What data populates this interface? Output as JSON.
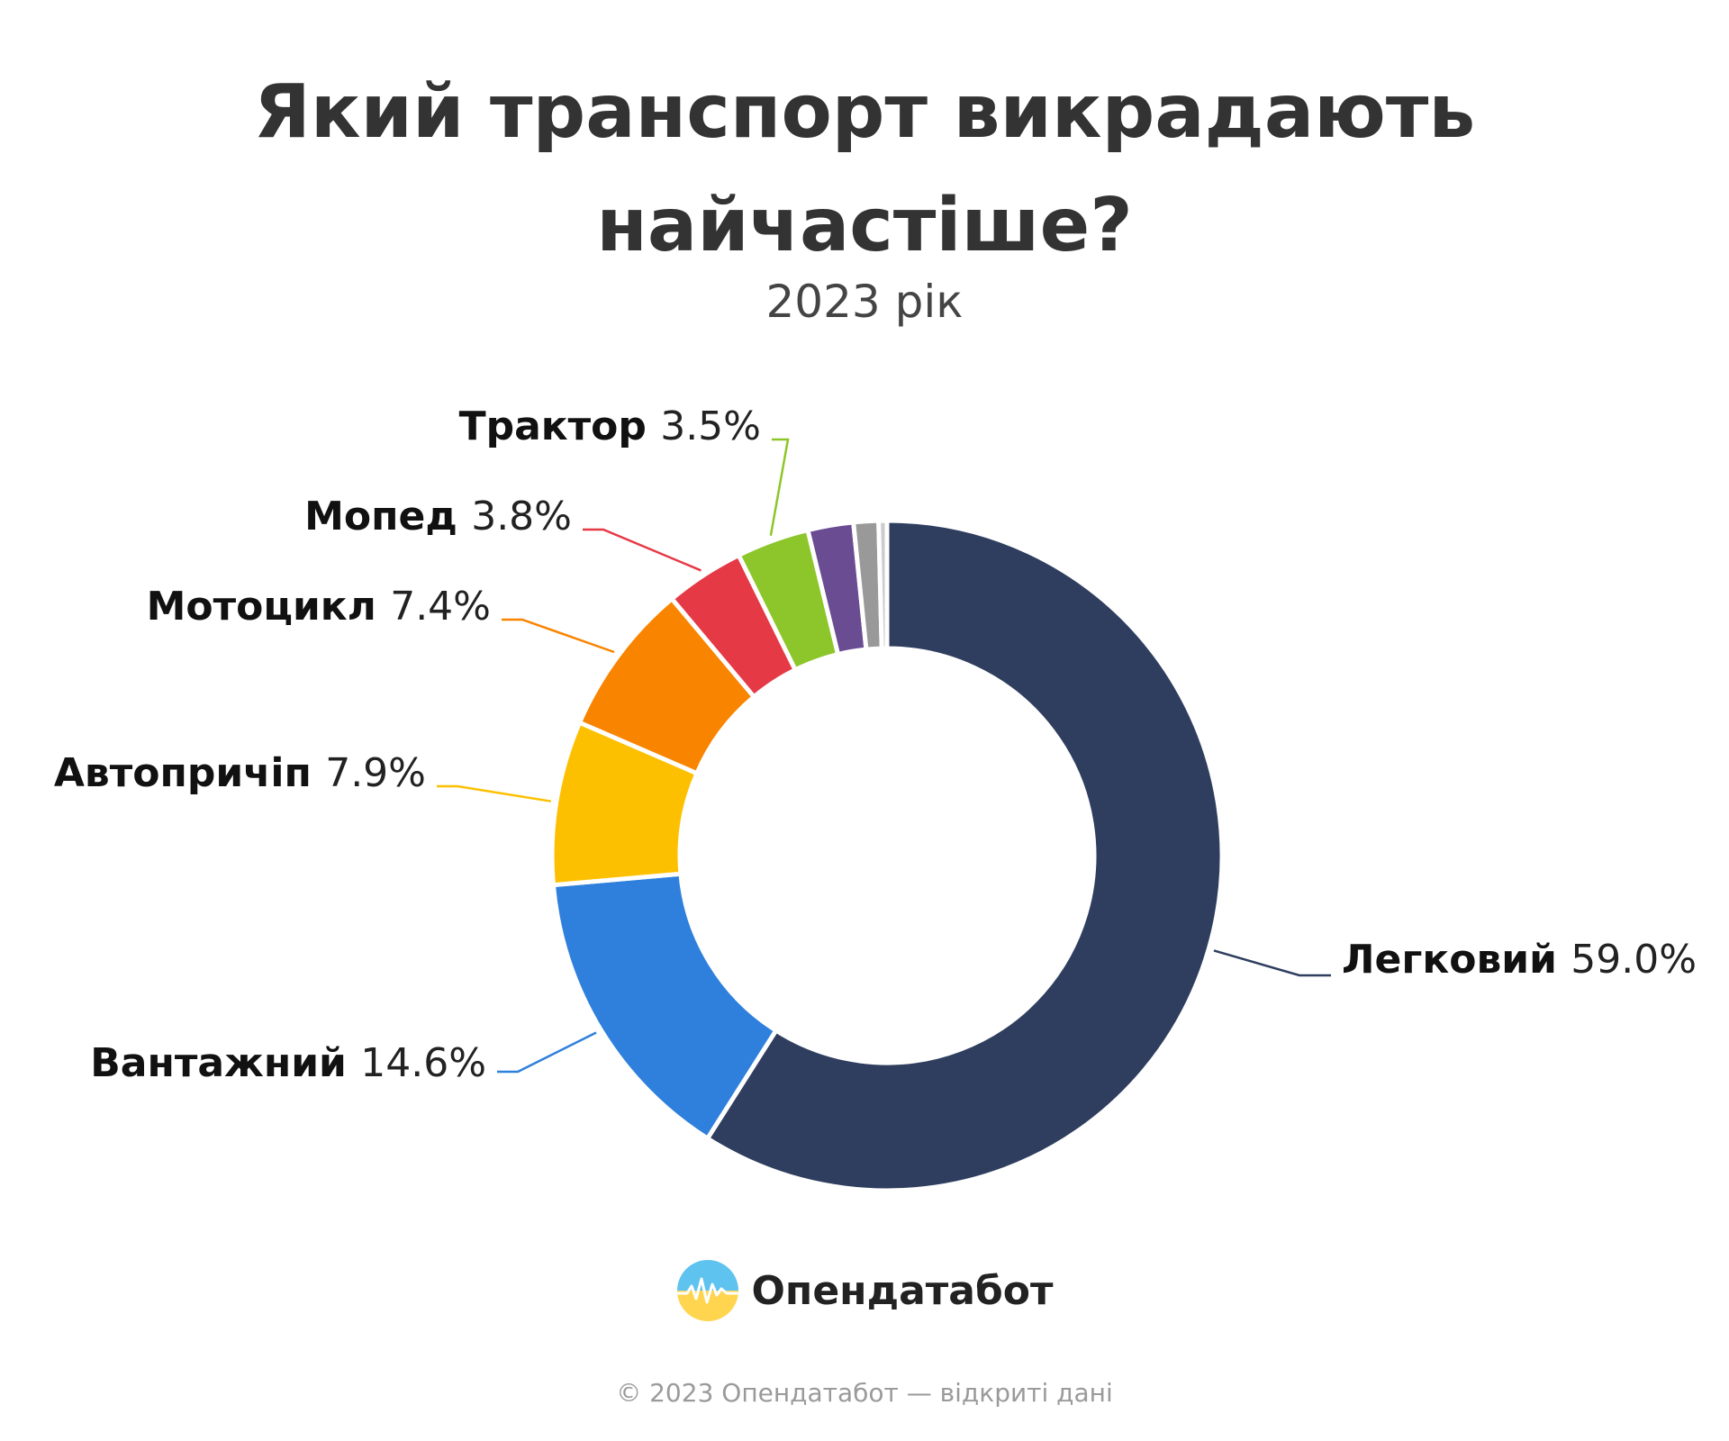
{
  "page": {
    "title_line1": "Який транспорт викрадають",
    "title_line2": "найчастіше?",
    "subtitle": "2023 рік"
  },
  "chart_data": {
    "type": "pie",
    "variant": "donut",
    "title": "Який транспорт викрадають найчастіше?",
    "subtitle": "2023 рік",
    "unit": "%",
    "start_angle_deg": 0,
    "slices": [
      {
        "label": "Легковий",
        "value": 59.0,
        "display": "59.0%",
        "color": "#2f3e5f",
        "show_label": true
      },
      {
        "label": "Вантажний",
        "value": 14.6,
        "display": "14.6%",
        "color": "#2e80dc",
        "show_label": true
      },
      {
        "label": "Автопричіп",
        "value": 7.9,
        "display": "7.9%",
        "color": "#fdc000",
        "show_label": true
      },
      {
        "label": "Мотоцикл",
        "value": 7.4,
        "display": "7.4%",
        "color": "#f98400",
        "show_label": true
      },
      {
        "label": "Мопед",
        "value": 3.8,
        "display": "3.8%",
        "color": "#e63946",
        "show_label": true
      },
      {
        "label": "Трактор",
        "value": 3.5,
        "display": "3.5%",
        "color": "#8dc62a",
        "show_label": true
      },
      {
        "label": "",
        "value": 2.2,
        "display": "",
        "color": "#6a4c93",
        "show_label": false
      },
      {
        "label": "",
        "value": 1.2,
        "display": "",
        "color": "#999999",
        "show_label": false
      },
      {
        "label": "",
        "value": 0.4,
        "display": "",
        "color": "#cccccc",
        "show_label": false
      }
    ],
    "legend": "none",
    "data_labels": "outside-with-leader-lines"
  },
  "brand": {
    "name": "Опендатабот",
    "logo_colors": {
      "top": "#5fc3f0",
      "bottom": "#ffd54f"
    }
  },
  "footer": {
    "copyright": "© 2023 Опендатабот — відкриті дані"
  }
}
